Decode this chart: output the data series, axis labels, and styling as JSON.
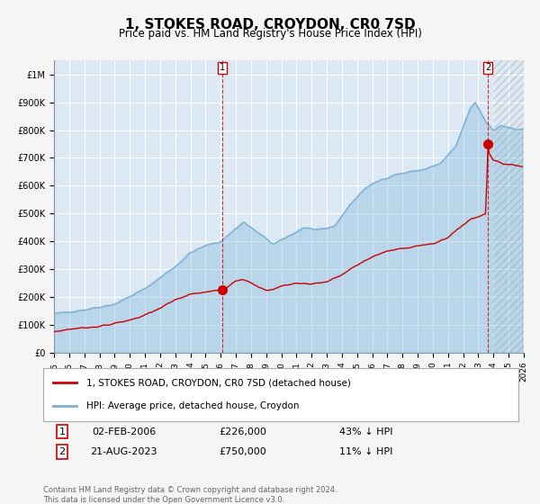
{
  "title": "1, STOKES ROAD, CROYDON, CR0 7SD",
  "subtitle": "Price paid vs. HM Land Registry's House Price Index (HPI)",
  "legend_line1": "1, STOKES ROAD, CROYDON, CR0 7SD (detached house)",
  "legend_line2": "HPI: Average price, detached house, Croydon",
  "annotation1_label": "1",
  "annotation1_date": "02-FEB-2006",
  "annotation1_price": "£226,000",
  "annotation1_hpi": "43% ↓ HPI",
  "annotation1_year": 2006.08,
  "annotation1_value": 226000,
  "annotation2_label": "2",
  "annotation2_date": "21-AUG-2023",
  "annotation2_price": "£750,000",
  "annotation2_hpi": "11% ↓ HPI",
  "annotation2_year": 2023.63,
  "annotation2_value": 750000,
  "x_start": 1995.0,
  "x_end": 2026.0,
  "y_min": 0,
  "y_max": 1050000,
  "background_color": "#dce9f5",
  "plot_bg_color": "#dce9f5",
  "red_color": "#cc0000",
  "blue_color": "#7ab0d4",
  "grid_color": "#ffffff",
  "footer": "Contains HM Land Registry data © Crown copyright and database right 2024.\nThis data is licensed under the Open Government Licence v3.0.",
  "yticks": [
    0,
    100000,
    200000,
    300000,
    400000,
    500000,
    600000,
    700000,
    800000,
    900000,
    1000000
  ],
  "ytick_labels": [
    "£0",
    "£100K",
    "£200K",
    "£300K",
    "£400K",
    "£500K",
    "£600K",
    "£700K",
    "£800K",
    "£900K",
    "£1M"
  ],
  "xticks": [
    1995,
    1996,
    1997,
    1998,
    1999,
    2000,
    2001,
    2002,
    2003,
    2004,
    2005,
    2006,
    2007,
    2008,
    2009,
    2010,
    2011,
    2012,
    2013,
    2014,
    2015,
    2016,
    2017,
    2018,
    2019,
    2020,
    2021,
    2022,
    2023,
    2024,
    2025,
    2026
  ]
}
